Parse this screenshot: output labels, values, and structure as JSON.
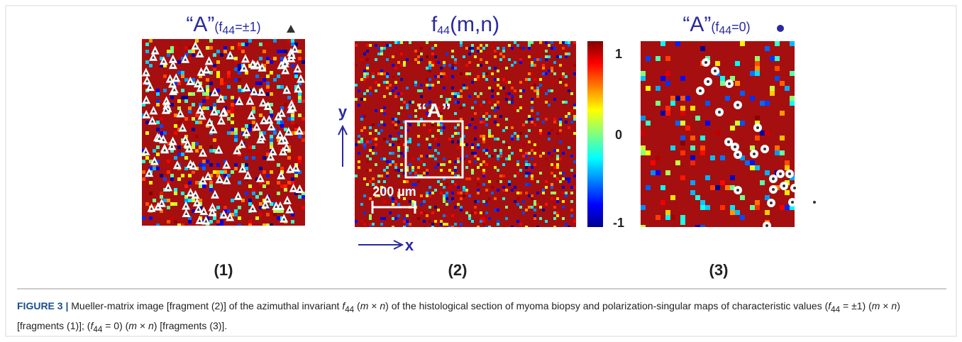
{
  "panels": [
    {
      "title": "“A”",
      "title_pre": "(f",
      "title_sub": "44",
      "title_post": "=±1)",
      "label": "(1)"
    },
    {
      "title": "f",
      "title_sub": "44",
      "title_post": "(m,n)",
      "label": "(2)",
      "overlay": "“A”",
      "scale": "200 µm",
      "x_axis": "x",
      "y_axis": "y"
    },
    {
      "title": "“A”",
      "title_pre": "(f",
      "title_sub": "44",
      "title_post": "=0)",
      "label": "(3)"
    }
  ],
  "colorbar": {
    "ticks": [
      "1",
      "0",
      "-1"
    ]
  },
  "caption": [
    {
      "text": "FIGURE 3 |",
      "style": "b"
    },
    {
      "text": " Mueller-matrix image [fragment (2)] of the azimuthal invariant "
    },
    {
      "text": "f",
      "style": "i"
    },
    {
      "text": "44",
      "style": "sub"
    },
    {
      "text": " ("
    },
    {
      "text": "m",
      "style": "i"
    },
    {
      "text": " × "
    },
    {
      "text": "n",
      "style": "i"
    },
    {
      "text": ") of the histological section of myoma biopsy and polarization-singular maps of characteristic values  ("
    },
    {
      "text": "f",
      "style": "i"
    },
    {
      "text": "44",
      "style": "sub"
    },
    {
      "text": " = ±1) ("
    },
    {
      "text": "m",
      "style": "i"
    },
    {
      "text": " × "
    },
    {
      "text": "n",
      "style": "i"
    },
    {
      "text": ") [fragments (1)];  ("
    },
    {
      "text": "f",
      "style": "i"
    },
    {
      "text": "44",
      "style": "sub"
    },
    {
      "text": " = 0) ("
    },
    {
      "text": "m",
      "style": "i"
    },
    {
      "text": " × "
    },
    {
      "text": "n",
      "style": "i"
    },
    {
      "text": ") [fragments (3)]."
    }
  ]
}
